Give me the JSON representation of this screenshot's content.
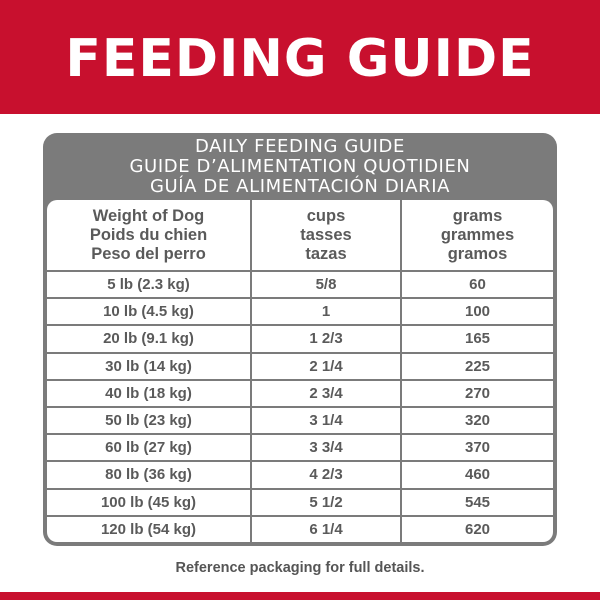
{
  "banner": {
    "title": "FEEDING GUIDE",
    "color": "#c8102e"
  },
  "card": {
    "heading_lines": [
      "DAILY FEEDING GUIDE",
      "GUIDE D’ALIMENTATION QUOTIDIEN",
      "GUÍA DE ALIMENTACIÓN DIARIA"
    ],
    "color": "#7b7b7b"
  },
  "table": {
    "headers": [
      [
        "Weight of Dog",
        "Poids du chien",
        "Peso del perro"
      ],
      [
        "cups",
        "tasses",
        "tazas"
      ],
      [
        "grams",
        "grammes",
        "gramos"
      ]
    ],
    "rows": [
      [
        "5 lb (2.3 kg)",
        "5/8",
        "60"
      ],
      [
        "10 lb (4.5 kg)",
        "1",
        "100"
      ],
      [
        "20 lb (9.1 kg)",
        "1 2/3",
        "165"
      ],
      [
        "30 lb (14 kg)",
        "2 1/4",
        "225"
      ],
      [
        "40 lb (18 kg)",
        "2 3/4",
        "270"
      ],
      [
        "50 lb (23 kg)",
        "3 1/4",
        "320"
      ],
      [
        "60 lb (27 kg)",
        "3 3/4",
        "370"
      ],
      [
        "80 lb (36 kg)",
        "4 2/3",
        "460"
      ],
      [
        "100 lb (45 kg)",
        "5 1/2",
        "545"
      ],
      [
        "120 lb (54 kg)",
        "6 1/4",
        "620"
      ]
    ]
  },
  "footnote": "Reference packaging for full details."
}
